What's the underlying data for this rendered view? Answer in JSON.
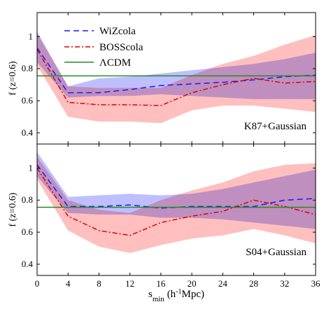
{
  "chart_data": [
    {
      "type": "line",
      "panel_label": "K87+Gaussian",
      "ylabel": "f (z=0.6)",
      "xlim": [
        0,
        36
      ],
      "ylim": [
        0.33,
        1.15
      ],
      "yticks": [
        "0.4",
        "0.6",
        "0.8",
        "1"
      ],
      "legend": {
        "position": "top-left",
        "entries": [
          "WiZcola",
          "BOSScola",
          "ΛCDM"
        ]
      },
      "x": [
        0,
        4,
        8,
        12,
        16,
        20,
        24,
        28,
        32,
        36
      ],
      "series": [
        {
          "name": "WiZcola",
          "color": "#1a1aff",
          "style": "dashed",
          "values": [
            0.93,
            0.65,
            0.65,
            0.67,
            0.695,
            0.705,
            0.715,
            0.73,
            0.75,
            0.76
          ],
          "band_lower": [
            0.84,
            0.62,
            0.63,
            0.63,
            0.64,
            0.63,
            0.62,
            0.61,
            0.61,
            0.61
          ],
          "band_upper": [
            1.03,
            0.69,
            0.74,
            0.75,
            0.77,
            0.79,
            0.81,
            0.83,
            0.86,
            0.9
          ],
          "band_color": "#aaaaff"
        },
        {
          "name": "BOSScola",
          "color": "#e00000",
          "style": "dashdot",
          "values": [
            0.92,
            0.59,
            0.575,
            0.575,
            0.57,
            0.65,
            0.7,
            0.74,
            0.71,
            0.72
          ],
          "band_lower": [
            0.82,
            0.5,
            0.47,
            0.47,
            0.46,
            0.54,
            0.57,
            0.57,
            0.55,
            0.53
          ],
          "band_upper": [
            1.02,
            0.69,
            0.68,
            0.68,
            0.68,
            0.76,
            0.83,
            0.88,
            0.95,
            1.01
          ],
          "band_color": "#ffaaaa"
        },
        {
          "name": "ΛCDM",
          "color": "#228b22",
          "style": "solid",
          "values": [
            0.755,
            0.755,
            0.755,
            0.755,
            0.755,
            0.755,
            0.755,
            0.755,
            0.755,
            0.755
          ]
        }
      ]
    },
    {
      "type": "line",
      "panel_label": "S04+Gaussian",
      "ylabel": "f (z=0.6)",
      "xlabel": "s_min (h^-1 Mpc)",
      "xticks": [
        "0",
        "4",
        "8",
        "12",
        "16",
        "20",
        "24",
        "28",
        "32",
        "36"
      ],
      "xlim": [
        0,
        36
      ],
      "ylim": [
        0.33,
        1.15
      ],
      "yticks": [
        "0.4",
        "0.6",
        "0.8",
        "1"
      ],
      "x": [
        0,
        4,
        8,
        12,
        16,
        20,
        24,
        28,
        32,
        36
      ],
      "series": [
        {
          "name": "WiZcola",
          "color": "#1a1aff",
          "style": "dashed",
          "values": [
            1.02,
            0.76,
            0.76,
            0.77,
            0.75,
            0.76,
            0.76,
            0.76,
            0.8,
            0.81
          ],
          "band_lower": [
            0.95,
            0.72,
            0.71,
            0.71,
            0.69,
            0.69,
            0.68,
            0.66,
            0.64,
            0.62
          ],
          "band_upper": [
            1.1,
            0.82,
            0.83,
            0.84,
            0.83,
            0.84,
            0.87,
            0.91,
            0.95,
            0.99
          ],
          "band_color": "#aaaaff"
        },
        {
          "name": "BOSScola",
          "color": "#e00000",
          "style": "dashdot",
          "values": [
            1.0,
            0.7,
            0.61,
            0.58,
            0.66,
            0.7,
            0.73,
            0.8,
            0.76,
            0.71
          ],
          "band_lower": [
            0.93,
            0.61,
            0.51,
            0.47,
            0.52,
            0.56,
            0.58,
            0.62,
            0.58,
            0.53
          ],
          "band_upper": [
            1.07,
            0.8,
            0.74,
            0.72,
            0.8,
            0.86,
            0.91,
            0.98,
            1.02,
            1.03
          ],
          "band_color": "#ffaaaa"
        },
        {
          "name": "ΛCDM",
          "color": "#228b22",
          "style": "solid",
          "values": [
            0.755,
            0.755,
            0.755,
            0.755,
            0.755,
            0.755,
            0.755,
            0.755,
            0.755,
            0.755
          ]
        }
      ]
    }
  ]
}
